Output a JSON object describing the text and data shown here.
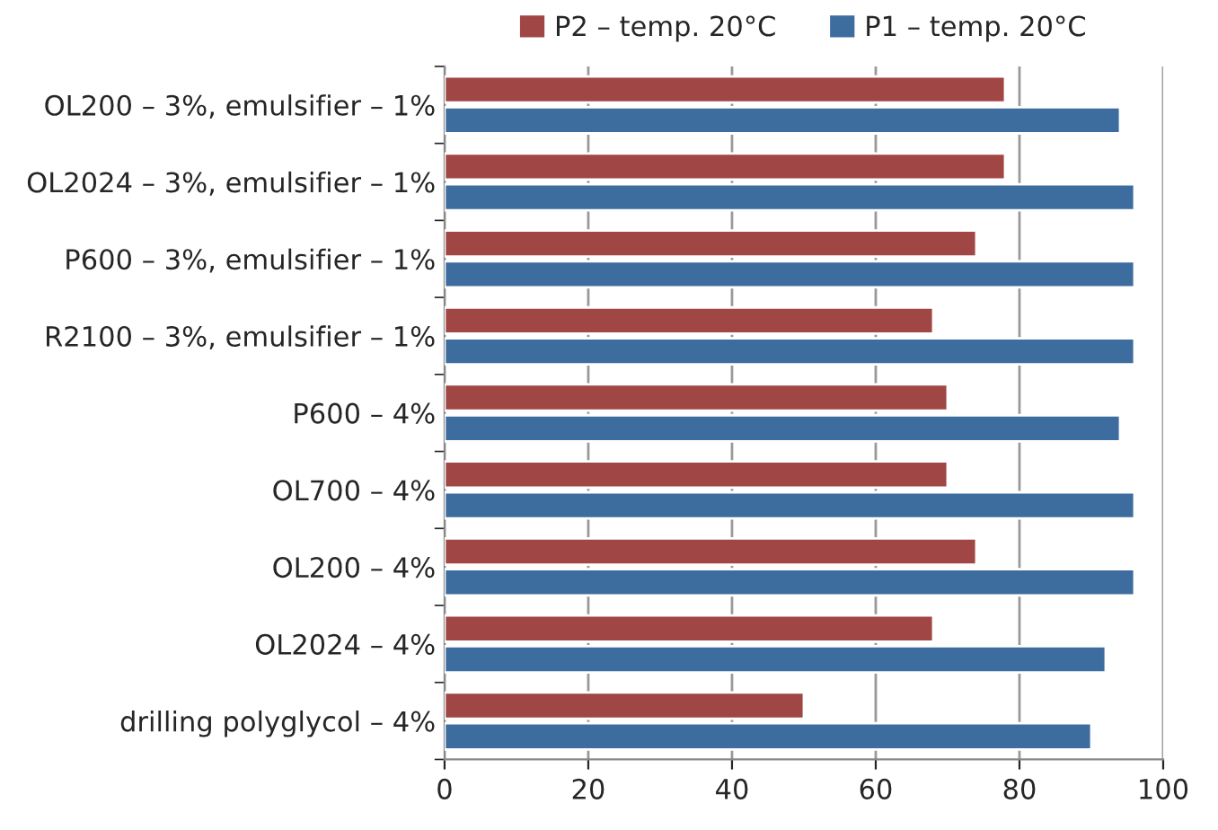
{
  "chart_data": {
    "type": "bar",
    "orientation": "horizontal",
    "categories": [
      "OL200 – 3%, emulsifier – 1%",
      "OL2024 – 3%, emulsifier – 1%",
      "P600 – 3%, emulsifier – 1%",
      "R2100 – 3%, emulsifier – 1%",
      "P600 – 4%",
      "OL700 – 4%",
      "OL200 – 4%",
      "OL2024 – 4%",
      "drilling polyglycol – 4%"
    ],
    "series": [
      {
        "name": "P2 – temp. 20°C",
        "color": "#a04644",
        "values": [
          78,
          78,
          74,
          68,
          70,
          70,
          74,
          68,
          50
        ]
      },
      {
        "name": "P1 – temp. 20°C",
        "color": "#3d6c9f",
        "values": [
          94,
          96,
          96,
          96,
          94,
          96,
          96,
          92,
          90
        ]
      }
    ],
    "xlim": [
      0,
      100
    ],
    "xticks": [
      0,
      20,
      40,
      60,
      80,
      100
    ],
    "grid": "x",
    "legend": "top"
  }
}
